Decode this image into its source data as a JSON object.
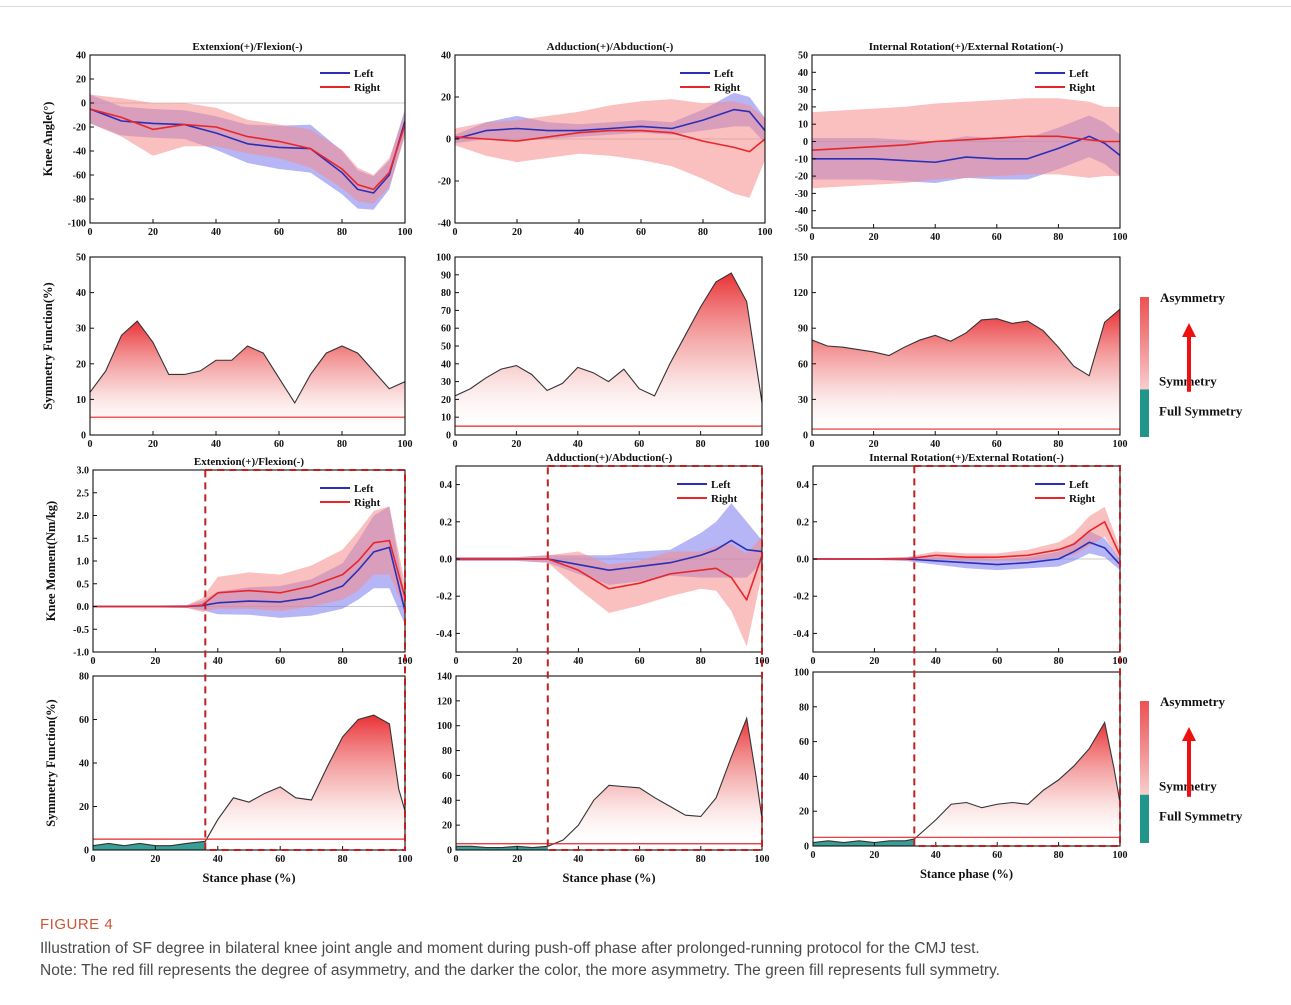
{
  "caption": {
    "label": "FIGURE 4",
    "line1": "Illustration of SF degree in bilateral knee joint angle and moment during push-off phase after prolonged-running protocol for the CMJ test.",
    "line2": "Note: The red fill represents the degree of asymmetry, and the darker the color, the more asymmetry. The green fill represents full symmetry."
  },
  "colors": {
    "left": "#2b2fb8",
    "right": "#e8262a",
    "left_band": "#7a7af0",
    "right_band": "#f58a8a",
    "sf_fill": "#e8262a",
    "full_symmetry": "#21958a",
    "curve": "#333333"
  },
  "colorbar": {
    "asymmetry": "Asymmetry",
    "symmetry": "Symmetry",
    "full_symmetry": "Full Symmetry"
  },
  "legend": {
    "left": "Left",
    "right": "Right"
  },
  "labels": {
    "knee_angle": "Knee Angle(°)",
    "symmetry_function": "Symmetry Function(%)",
    "knee_moment": "Knee Moment(Nm/kg)",
    "stance_phase": "Stance phase (%)"
  },
  "chart_data": [
    {
      "id": "angle-flex",
      "type": "line",
      "title": "Extenxion(+)/Flexion(-)",
      "ylabel": "Knee Angle(°)",
      "xlim": [
        0,
        100
      ],
      "ylim": [
        -100,
        40
      ],
      "xticks": [
        0,
        20,
        40,
        60,
        80,
        100
      ],
      "yticks": [
        40,
        20,
        0,
        -20,
        -40,
        -60,
        -80,
        -100
      ],
      "legend": true,
      "series": [
        {
          "name": "Left",
          "x": [
            0,
            10,
            20,
            30,
            40,
            50,
            60,
            70,
            80,
            85,
            90,
            95,
            100
          ],
          "y": [
            -5,
            -15,
            -17,
            -18,
            -25,
            -34,
            -37,
            -38,
            -58,
            -72,
            -75,
            -60,
            -15
          ],
          "band": [
            12,
            12,
            12,
            12,
            14,
            16,
            18,
            20,
            18,
            16,
            14,
            12,
            10
          ]
        },
        {
          "name": "Right",
          "x": [
            0,
            10,
            20,
            30,
            40,
            50,
            60,
            70,
            80,
            85,
            90,
            95,
            100
          ],
          "y": [
            -5,
            -12,
            -22,
            -18,
            -20,
            -28,
            -32,
            -38,
            -55,
            -68,
            -72,
            -58,
            -18
          ],
          "band": [
            12,
            16,
            22,
            18,
            16,
            14,
            14,
            16,
            16,
            14,
            12,
            12,
            10
          ]
        }
      ]
    },
    {
      "id": "angle-add",
      "type": "line",
      "title": "Adduction(+)/Abduction(-)",
      "xlim": [
        0,
        100
      ],
      "ylim": [
        -40,
        40
      ],
      "xticks": [
        0,
        20,
        40,
        60,
        80,
        100
      ],
      "yticks": [
        40,
        20,
        0,
        -20,
        -40
      ],
      "legend": true,
      "series": [
        {
          "name": "Left",
          "x": [
            0,
            10,
            20,
            30,
            40,
            50,
            60,
            70,
            80,
            90,
            95,
            100
          ],
          "y": [
            0,
            4,
            5,
            4,
            4,
            5,
            6,
            5,
            9,
            14,
            13,
            4
          ],
          "band": [
            2,
            4,
            6,
            4,
            3,
            3,
            3,
            3,
            5,
            8,
            7,
            6
          ]
        },
        {
          "name": "Right",
          "x": [
            0,
            10,
            20,
            30,
            40,
            50,
            60,
            70,
            80,
            90,
            95,
            100
          ],
          "y": [
            1,
            0,
            -1,
            1,
            3,
            4,
            4,
            3,
            -1,
            -4,
            -6,
            0
          ],
          "band": [
            4,
            8,
            10,
            10,
            10,
            12,
            14,
            16,
            18,
            22,
            22,
            10
          ]
        }
      ]
    },
    {
      "id": "angle-rot",
      "type": "line",
      "title": "Internal Rotation(+)/External Rotation(-)",
      "xlim": [
        0,
        100
      ],
      "ylim": [
        -50,
        50
      ],
      "xticks": [
        0,
        20,
        40,
        60,
        80,
        100
      ],
      "yticks": [
        50,
        40,
        30,
        20,
        10,
        0,
        -10,
        -20,
        -30,
        -40,
        -50
      ],
      "legend": true,
      "series": [
        {
          "name": "Left",
          "x": [
            0,
            10,
            20,
            30,
            40,
            50,
            60,
            70,
            80,
            90,
            95,
            100
          ],
          "y": [
            -10,
            -10,
            -10,
            -11,
            -12,
            -9,
            -10,
            -10,
            -4,
            3,
            -1,
            -8
          ],
          "band": [
            12,
            12,
            12,
            12,
            12,
            12,
            12,
            12,
            12,
            12,
            12,
            12
          ]
        },
        {
          "name": "Right",
          "x": [
            0,
            10,
            20,
            30,
            40,
            50,
            60,
            70,
            80,
            90,
            95,
            100
          ],
          "y": [
            -5,
            -4,
            -3,
            -2,
            0,
            1,
            2,
            3,
            3,
            1,
            0,
            0
          ],
          "band": [
            22,
            22,
            22,
            22,
            22,
            22,
            22,
            22,
            22,
            22,
            20,
            20
          ]
        }
      ]
    },
    {
      "id": "sf-angle-flex",
      "type": "area",
      "ylabel": "Symmetry Function(%)",
      "xlim": [
        0,
        100
      ],
      "ylim": [
        0,
        50
      ],
      "xticks": [
        0,
        20,
        40,
        60,
        80,
        100
      ],
      "yticks": [
        50,
        40,
        30,
        20,
        10,
        0
      ],
      "threshold": 5,
      "x": [
        0,
        5,
        10,
        15,
        20,
        25,
        30,
        35,
        40,
        45,
        50,
        55,
        60,
        65,
        70,
        75,
        80,
        85,
        90,
        95,
        100
      ],
      "y": [
        12,
        18,
        28,
        32,
        26,
        17,
        17,
        18,
        21,
        21,
        25,
        23,
        16,
        9,
        17,
        23,
        25,
        23,
        18,
        13,
        15
      ]
    },
    {
      "id": "sf-angle-add",
      "type": "area",
      "xlim": [
        0,
        100
      ],
      "ylim": [
        0,
        100
      ],
      "xticks": [
        0,
        20,
        40,
        60,
        80,
        100
      ],
      "yticks": [
        100,
        90,
        80,
        70,
        60,
        50,
        40,
        30,
        20,
        10,
        0
      ],
      "threshold": 5,
      "x": [
        0,
        5,
        10,
        15,
        20,
        25,
        30,
        35,
        40,
        45,
        50,
        55,
        60,
        65,
        70,
        75,
        80,
        85,
        90,
        95,
        100
      ],
      "y": [
        22,
        26,
        32,
        37,
        39,
        34,
        25,
        29,
        38,
        35,
        30,
        37,
        26,
        22,
        40,
        56,
        72,
        86,
        91,
        75,
        18
      ]
    },
    {
      "id": "sf-angle-rot",
      "type": "area",
      "xlim": [
        0,
        100
      ],
      "ylim": [
        0,
        150
      ],
      "xticks": [
        0,
        20,
        40,
        60,
        80,
        100
      ],
      "yticks": [
        150,
        120,
        90,
        60,
        30,
        0
      ],
      "threshold": 5,
      "x": [
        0,
        5,
        10,
        15,
        20,
        25,
        30,
        35,
        40,
        45,
        50,
        55,
        60,
        65,
        70,
        75,
        80,
        85,
        90,
        95,
        100
      ],
      "y": [
        80,
        75,
        74,
        72,
        70,
        67,
        74,
        80,
        84,
        79,
        86,
        97,
        98,
        94,
        96,
        88,
        74,
        58,
        50,
        95,
        106
      ]
    },
    {
      "id": "moment-flex",
      "type": "line",
      "title": "Extenxion(+)/Flexion(-)",
      "ylabel": "Knee Moment(Nm/kg)",
      "xlim": [
        0,
        100
      ],
      "ylim": [
        -1.0,
        3.0
      ],
      "xticks": [
        0,
        20,
        40,
        60,
        80,
        100
      ],
      "yticks": [
        3.0,
        2.5,
        2.0,
        1.5,
        1.0,
        0.5,
        0.0,
        -0.5,
        -1.0
      ],
      "legend": true,
      "vline": 36,
      "series": [
        {
          "name": "Left",
          "x": [
            0,
            10,
            20,
            30,
            35,
            40,
            50,
            60,
            70,
            80,
            85,
            90,
            95,
            100
          ],
          "y": [
            0,
            0,
            0,
            0,
            0.02,
            0.08,
            0.12,
            0.1,
            0.2,
            0.45,
            0.8,
            1.2,
            1.3,
            -0.1
          ],
          "band": [
            0.02,
            0.02,
            0.02,
            0.03,
            0.1,
            0.25,
            0.3,
            0.35,
            0.4,
            0.5,
            0.65,
            0.8,
            0.9,
            0.3
          ]
        },
        {
          "name": "Right",
          "x": [
            0,
            10,
            20,
            30,
            35,
            40,
            50,
            60,
            70,
            80,
            85,
            90,
            95,
            100
          ],
          "y": [
            0,
            0,
            0,
            0,
            0.03,
            0.3,
            0.35,
            0.3,
            0.45,
            0.7,
            1.0,
            1.4,
            1.45,
            0.2
          ],
          "band": [
            0.02,
            0.02,
            0.02,
            0.03,
            0.15,
            0.35,
            0.4,
            0.4,
            0.45,
            0.55,
            0.65,
            0.7,
            0.75,
            0.3
          ]
        }
      ]
    },
    {
      "id": "moment-add",
      "type": "line",
      "title": "Adduction(+)/Abduction(-)",
      "xlim": [
        0,
        100
      ],
      "ylim": [
        -0.5,
        0.5
      ],
      "xticks": [
        0,
        20,
        40,
        60,
        80,
        100
      ],
      "yticks": [
        0.4,
        0.2,
        0.0,
        -0.2,
        -0.4
      ],
      "legend": true,
      "vline": 30,
      "series": [
        {
          "name": "Left",
          "x": [
            0,
            10,
            20,
            30,
            40,
            50,
            60,
            70,
            80,
            85,
            90,
            95,
            100
          ],
          "y": [
            0,
            0,
            0,
            0,
            -0.03,
            -0.06,
            -0.04,
            -0.02,
            0.02,
            0.05,
            0.1,
            0.05,
            0.04
          ],
          "band": [
            0.01,
            0.01,
            0.01,
            0.02,
            0.05,
            0.08,
            0.08,
            0.07,
            0.12,
            0.15,
            0.2,
            0.15,
            0.06
          ]
        },
        {
          "name": "Right",
          "x": [
            0,
            10,
            20,
            30,
            40,
            50,
            60,
            70,
            80,
            85,
            90,
            95,
            100
          ],
          "y": [
            0,
            0,
            0,
            0,
            -0.06,
            -0.16,
            -0.13,
            -0.08,
            -0.06,
            -0.05,
            -0.1,
            -0.22,
            0.02
          ],
          "band": [
            0.01,
            0.01,
            0.01,
            0.02,
            0.1,
            0.13,
            0.12,
            0.12,
            0.1,
            0.12,
            0.18,
            0.25,
            0.1
          ]
        }
      ]
    },
    {
      "id": "moment-rot",
      "type": "line",
      "title": "Internal Rotation(+)/External Rotation(-)",
      "xlim": [
        0,
        100
      ],
      "ylim": [
        -0.5,
        0.5
      ],
      "xticks": [
        0,
        20,
        40,
        60,
        80,
        100
      ],
      "yticks": [
        0.4,
        0.2,
        0.0,
        -0.2,
        -0.4
      ],
      "legend": true,
      "vline": 33,
      "series": [
        {
          "name": "Left",
          "x": [
            0,
            10,
            20,
            30,
            40,
            50,
            60,
            70,
            80,
            85,
            90,
            95,
            100
          ],
          "y": [
            0,
            0,
            0,
            0,
            -0.01,
            -0.02,
            -0.03,
            -0.02,
            0,
            0.04,
            0.09,
            0.06,
            -0.03
          ],
          "band": [
            0.005,
            0.005,
            0.005,
            0.01,
            0.02,
            0.03,
            0.03,
            0.03,
            0.04,
            0.05,
            0.06,
            0.05,
            0.03
          ]
        },
        {
          "name": "Right",
          "x": [
            0,
            10,
            20,
            30,
            40,
            50,
            60,
            70,
            80,
            85,
            90,
            95,
            100
          ],
          "y": [
            0,
            0,
            0,
            0,
            0.02,
            0.01,
            0.01,
            0.02,
            0.05,
            0.08,
            0.15,
            0.2,
            0.02
          ],
          "band": [
            0.005,
            0.005,
            0.005,
            0.01,
            0.02,
            0.02,
            0.02,
            0.03,
            0.04,
            0.06,
            0.08,
            0.08,
            0.04
          ]
        }
      ]
    },
    {
      "id": "sf-moment-flex",
      "type": "area",
      "ylabel": "Symmetry Function(%)",
      "xlabel": "Stance phase (%)",
      "xlim": [
        0,
        100
      ],
      "ylim": [
        0,
        80
      ],
      "xticks": [
        0,
        20,
        40,
        60,
        80,
        100
      ],
      "yticks": [
        80,
        60,
        40,
        20,
        0
      ],
      "threshold": 5,
      "vline": 36,
      "x": [
        0,
        5,
        10,
        15,
        20,
        25,
        30,
        36,
        40,
        45,
        50,
        55,
        60,
        65,
        70,
        75,
        80,
        85,
        90,
        95,
        98,
        100
      ],
      "y": [
        2,
        3,
        2,
        3,
        2,
        2,
        3,
        4,
        14,
        24,
        22,
        26,
        29,
        24,
        23,
        38,
        52,
        60,
        62,
        58,
        28,
        18
      ]
    },
    {
      "id": "sf-moment-add",
      "type": "area",
      "xlabel": "Stance phase (%)",
      "xlim": [
        0,
        100
      ],
      "ylim": [
        0,
        140
      ],
      "xticks": [
        0,
        20,
        40,
        60,
        80,
        100
      ],
      "yticks": [
        140,
        120,
        100,
        80,
        60,
        40,
        20,
        0
      ],
      "threshold": 5,
      "vline": 30,
      "x": [
        0,
        5,
        10,
        15,
        20,
        25,
        30,
        35,
        40,
        45,
        50,
        55,
        60,
        65,
        70,
        75,
        80,
        85,
        90,
        95,
        98,
        100
      ],
      "y": [
        3,
        3,
        2,
        2,
        3,
        2,
        3,
        8,
        20,
        40,
        52,
        51,
        50,
        42,
        35,
        28,
        27,
        42,
        75,
        106,
        60,
        25
      ]
    },
    {
      "id": "sf-moment-rot",
      "type": "area",
      "xlabel": "Stance phase (%)",
      "xlim": [
        0,
        100
      ],
      "ylim": [
        0,
        100
      ],
      "xticks": [
        0,
        20,
        40,
        60,
        80,
        100
      ],
      "yticks": [
        100,
        80,
        60,
        40,
        20,
        0
      ],
      "threshold": 5,
      "vline": 33,
      "x": [
        0,
        5,
        10,
        15,
        20,
        25,
        30,
        33,
        40,
        45,
        50,
        55,
        60,
        65,
        70,
        75,
        80,
        85,
        90,
        95,
        98,
        100
      ],
      "y": [
        2,
        3,
        2,
        3,
        2,
        3,
        3,
        4,
        15,
        24,
        25,
        22,
        24,
        25,
        24,
        32,
        38,
        46,
        56,
        71,
        45,
        25
      ]
    }
  ]
}
